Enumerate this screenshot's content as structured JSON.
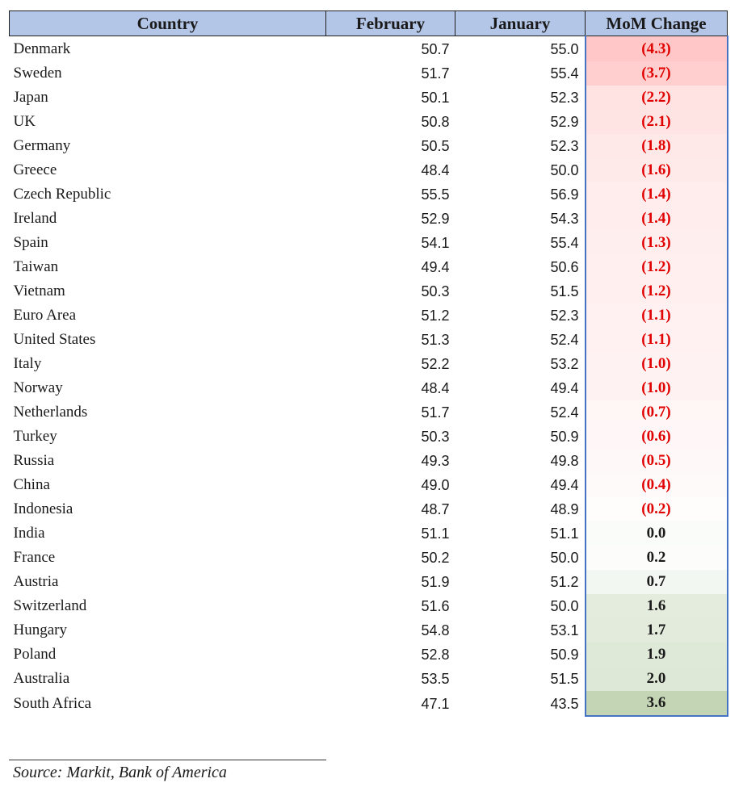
{
  "chart_data": {
    "type": "table",
    "columns": [
      "Country",
      "February",
      "January",
      "MoM Change"
    ],
    "rows": [
      {
        "country": "Denmark",
        "february": "50.7",
        "january": "55.0",
        "change": "(4.3)",
        "change_value": -4.3
      },
      {
        "country": "Sweden",
        "february": "51.7",
        "january": "55.4",
        "change": "(3.7)",
        "change_value": -3.7
      },
      {
        "country": "Japan",
        "february": "50.1",
        "january": "52.3",
        "change": "(2.2)",
        "change_value": -2.2
      },
      {
        "country": "UK",
        "february": "50.8",
        "january": "52.9",
        "change": "(2.1)",
        "change_value": -2.1
      },
      {
        "country": "Germany",
        "february": "50.5",
        "january": "52.3",
        "change": "(1.8)",
        "change_value": -1.8
      },
      {
        "country": "Greece",
        "february": "48.4",
        "january": "50.0",
        "change": "(1.6)",
        "change_value": -1.6
      },
      {
        "country": "Czech Republic",
        "february": "55.5",
        "january": "56.9",
        "change": "(1.4)",
        "change_value": -1.4
      },
      {
        "country": "Ireland",
        "february": "52.9",
        "january": "54.3",
        "change": "(1.4)",
        "change_value": -1.4
      },
      {
        "country": "Spain",
        "february": "54.1",
        "january": "55.4",
        "change": "(1.3)",
        "change_value": -1.3
      },
      {
        "country": "Taiwan",
        "february": "49.4",
        "january": "50.6",
        "change": "(1.2)",
        "change_value": -1.2
      },
      {
        "country": "Vietnam",
        "february": "50.3",
        "january": "51.5",
        "change": "(1.2)",
        "change_value": -1.2
      },
      {
        "country": "Euro Area",
        "february": "51.2",
        "january": "52.3",
        "change": "(1.1)",
        "change_value": -1.1
      },
      {
        "country": "United States",
        "february": "51.3",
        "january": "52.4",
        "change": "(1.1)",
        "change_value": -1.1
      },
      {
        "country": "Italy",
        "february": "52.2",
        "january": "53.2",
        "change": "(1.0)",
        "change_value": -1.0
      },
      {
        "country": "Norway",
        "february": "48.4",
        "january": "49.4",
        "change": "(1.0)",
        "change_value": -1.0
      },
      {
        "country": "Netherlands",
        "february": "51.7",
        "january": "52.4",
        "change": "(0.7)",
        "change_value": -0.7
      },
      {
        "country": "Turkey",
        "february": "50.3",
        "january": "50.9",
        "change": "(0.6)",
        "change_value": -0.6
      },
      {
        "country": "Russia",
        "february": "49.3",
        "january": "49.8",
        "change": "(0.5)",
        "change_value": -0.5
      },
      {
        "country": "China",
        "february": "49.0",
        "january": "49.4",
        "change": "(0.4)",
        "change_value": -0.4
      },
      {
        "country": "Indonesia",
        "february": "48.7",
        "january": "48.9",
        "change": "(0.2)",
        "change_value": -0.2
      },
      {
        "country": "India",
        "february": "51.1",
        "january": "51.1",
        "change": "0.0",
        "change_value": 0.0
      },
      {
        "country": "France",
        "february": "50.2",
        "january": "50.0",
        "change": "0.2",
        "change_value": 0.2
      },
      {
        "country": "Austria",
        "february": "51.9",
        "january": "51.2",
        "change": "0.7",
        "change_value": 0.7
      },
      {
        "country": "Switzerland",
        "february": "51.6",
        "january": "50.0",
        "change": "1.6",
        "change_value": 1.6
      },
      {
        "country": "Hungary",
        "february": "54.8",
        "january": "53.1",
        "change": "1.7",
        "change_value": 1.7
      },
      {
        "country": "Poland",
        "february": "52.8",
        "january": "50.9",
        "change": "1.9",
        "change_value": 1.9
      },
      {
        "country": "Australia",
        "february": "53.5",
        "january": "51.5",
        "change": "2.0",
        "change_value": 2.0
      },
      {
        "country": "South Africa",
        "february": "47.1",
        "january": "43.5",
        "change": "3.6",
        "change_value": 3.6
      }
    ],
    "source": "Source: Markit, Bank of America",
    "colors": {
      "header_bg": "#b4c6e7",
      "negative_text": "#e00000",
      "positive_text": "#1a1a1a",
      "scale_negative": "#ffc7c7",
      "scale_mid": "#ffffff",
      "scale_positive": "#c3d5b5",
      "change_border": "#4472c4"
    }
  }
}
